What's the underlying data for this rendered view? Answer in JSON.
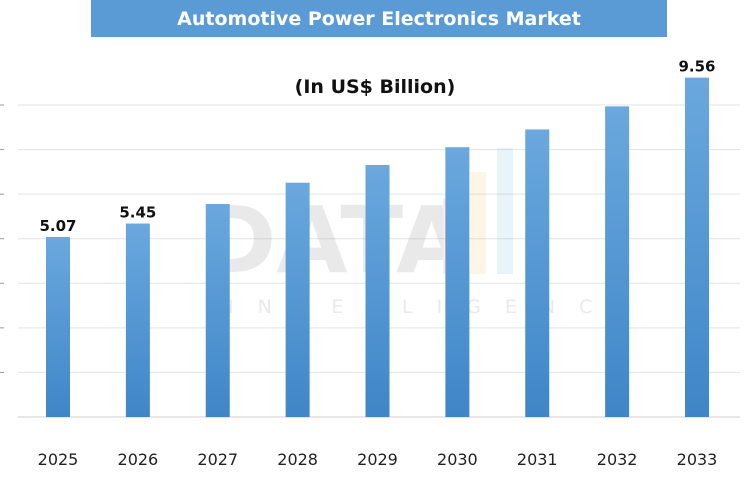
{
  "chart_data": {
    "type": "bar",
    "title": "Automotive Power Electronics Market",
    "subtitle": "(In US$ Billion)",
    "categories": [
      "2025",
      "2026",
      "2027",
      "2028",
      "2029",
      "2030",
      "2031",
      "2032",
      "2033"
    ],
    "values": [
      5.07,
      5.45,
      6.0,
      6.6,
      7.1,
      7.6,
      8.1,
      8.75,
      9.56
    ],
    "data_labels": [
      {
        "category": "2025",
        "text": "5.07"
      },
      {
        "category": "2026",
        "text": "5.45"
      },
      {
        "category": "2033",
        "text": "9.56"
      }
    ],
    "ylim": [
      0,
      10
    ],
    "grid": true,
    "legend": "none",
    "bar_color_top": "#6aa8de",
    "bar_color_bottom": "#3f86c8"
  },
  "watermark": {
    "main": "DATA",
    "sub": "INTELLIGENCE"
  }
}
